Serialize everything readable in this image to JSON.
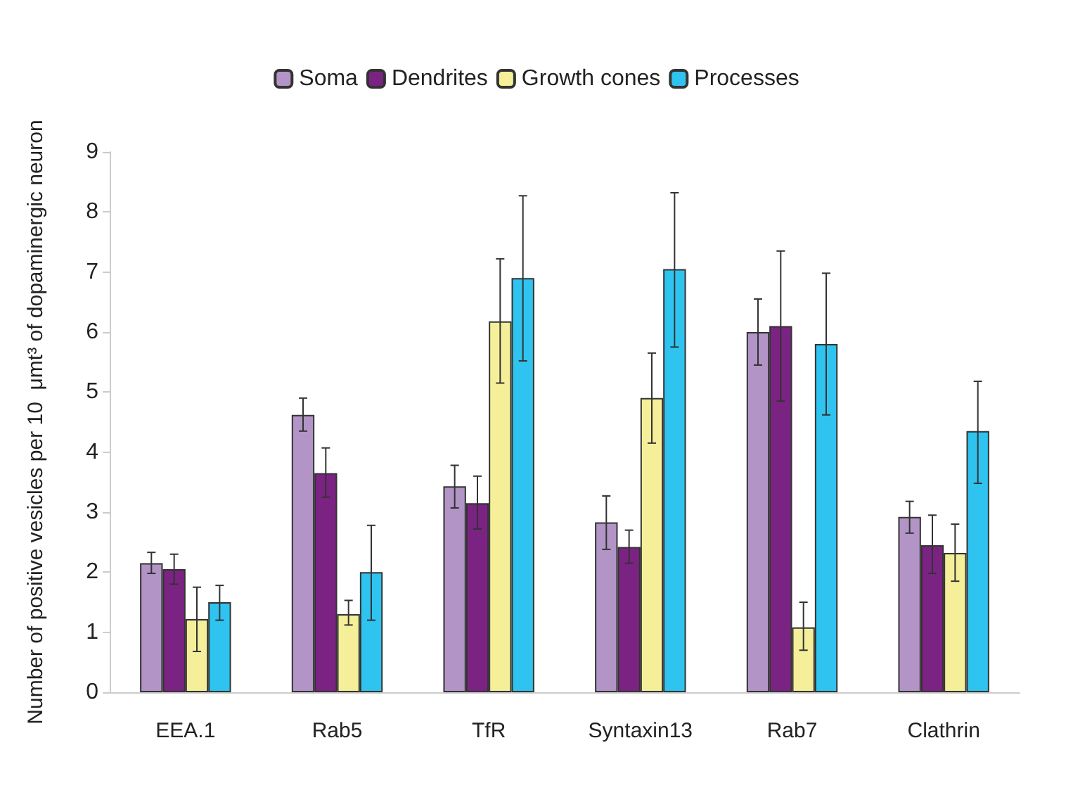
{
  "chart_data": {
    "type": "bar",
    "ylabel": "Number of positive vesicles per 10  μmt³ of dopaminergic neuron",
    "categories": [
      "EEA.1",
      "Rab5",
      "TfR",
      "Syntaxin13",
      "Rab7",
      "Clathrin"
    ],
    "series": [
      {
        "name": "Soma",
        "color": "#b294c7",
        "values": [
          2.15,
          4.62,
          3.43,
          2.83,
          6.0,
          2.92
        ],
        "errors": [
          [
            1.98,
            2.33
          ],
          [
            4.35,
            4.9
          ],
          [
            3.07,
            3.78
          ],
          [
            2.38,
            3.27
          ],
          [
            5.45,
            6.55
          ],
          [
            2.65,
            3.18
          ]
        ]
      },
      {
        "name": "Dendrites",
        "color": "#7b2382",
        "values": [
          2.05,
          3.65,
          3.15,
          2.42,
          6.1,
          2.45
        ],
        "errors": [
          [
            1.8,
            2.3
          ],
          [
            3.25,
            4.07
          ],
          [
            2.72,
            3.6
          ],
          [
            2.15,
            2.7
          ],
          [
            4.85,
            7.35
          ],
          [
            1.98,
            2.95
          ]
        ]
      },
      {
        "name": "Growth cones",
        "color": "#f5ef9a",
        "values": [
          1.22,
          1.3,
          6.18,
          4.9,
          1.08,
          2.32
        ],
        "errors": [
          [
            0.68,
            1.75
          ],
          [
            1.12,
            1.53
          ],
          [
            5.15,
            7.22
          ],
          [
            4.15,
            5.65
          ],
          [
            0.7,
            1.5
          ],
          [
            1.85,
            2.8
          ]
        ]
      },
      {
        "name": "Processes",
        "color": "#2ec4ef",
        "values": [
          1.5,
          2.0,
          6.9,
          7.05,
          5.8,
          4.35
        ],
        "errors": [
          [
            1.2,
            1.78
          ],
          [
            1.2,
            2.78
          ],
          [
            5.52,
            8.27
          ],
          [
            5.75,
            8.32
          ],
          [
            4.62,
            6.98
          ],
          [
            3.48,
            5.18
          ]
        ]
      }
    ],
    "ylim": [
      0,
      9
    ],
    "yticks": [
      0,
      1,
      2,
      3,
      4,
      5,
      6,
      7,
      8,
      9
    ],
    "grid": false,
    "legend": "top"
  }
}
